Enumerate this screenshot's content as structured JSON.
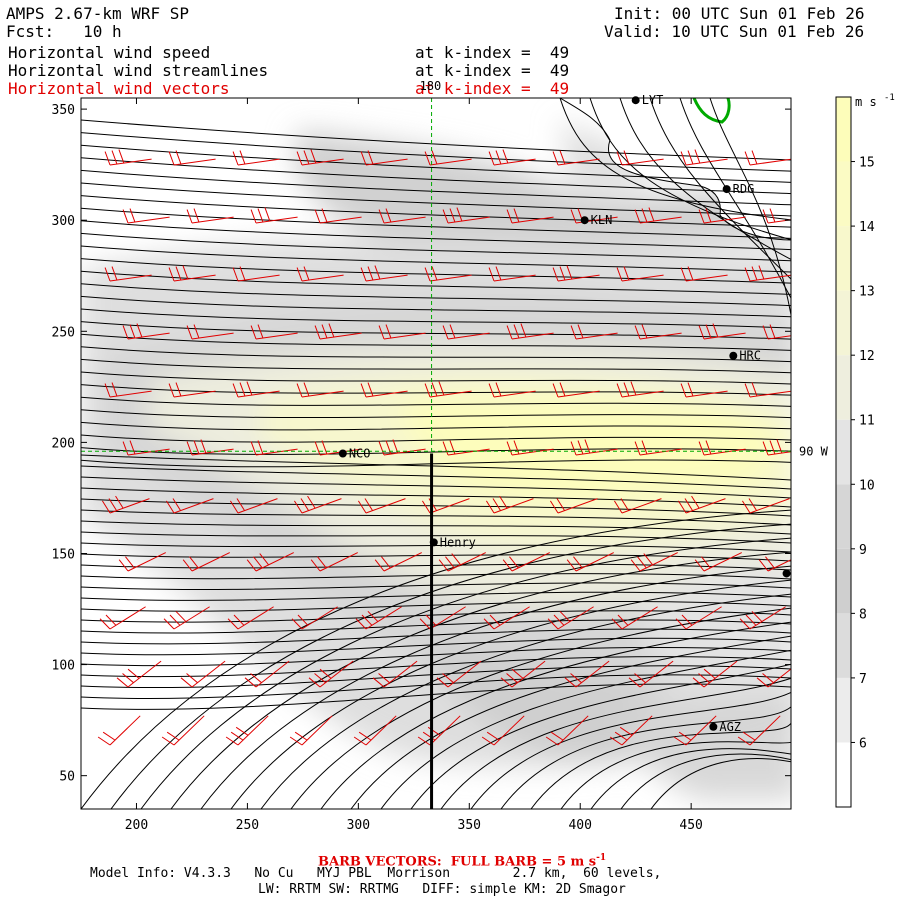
{
  "header": {
    "model": "AMPS 2.67-km WRF SP",
    "fcst": "Fcst:   10 h",
    "init": "Init: 00 UTC Sun 01 Feb 26",
    "valid": "Valid: 10 UTC Sun 01 Feb 26",
    "fields": [
      {
        "name": "Horizontal wind speed",
        "level": "at k-index =  49",
        "color": "#000000"
      },
      {
        "name": "Horizontal wind streamlines",
        "level": "at k-index =  49",
        "color": "#000000"
      },
      {
        "name": "Horizontal wind vectors",
        "level": "at k-index =  49",
        "color": "#e00000"
      }
    ]
  },
  "footer": {
    "barb_note": "BARB VECTORS:  FULL BARB = 5 m s",
    "barb_sup": "-1",
    "model_info": "Model Info: V4.3.3   No Cu   MYJ PBL  Morrison        2.7 km,  60 levels,",
    "physics": "LW: RRTM SW: RRTMG   DIFF: simple KM: 2D Smagor"
  },
  "chart_data": {
    "type": "heatmap",
    "title": "Horizontal wind speed / streamlines / vectors at k-index = 49",
    "xlim": [
      175,
      495
    ],
    "ylim": [
      35,
      355
    ],
    "x_ticks": [
      200,
      250,
      300,
      350,
      400,
      450
    ],
    "y_ticks": [
      50,
      100,
      150,
      200,
      250,
      300,
      350
    ],
    "colorbar": {
      "unit": "m s",
      "unit_sup": "-1",
      "ticks": [
        6,
        7,
        8,
        9,
        10,
        11,
        12,
        13,
        14,
        15
      ],
      "range": [
        5,
        16
      ],
      "colors": [
        "#ffffff",
        "#ececec",
        "#dcdcdc",
        "#cfcfcf",
        "#d6d6d6",
        "#e4e4e4",
        "#eeeede",
        "#f4f4d6",
        "#f8f8cc",
        "#fbfbc4",
        "#fdfdba"
      ]
    },
    "guide_lines": [
      {
        "label": "180",
        "orientation": "vertical",
        "value": 333
      },
      {
        "label": "90 W",
        "orientation": "horizontal",
        "value": 196
      }
    ],
    "cross_section": {
      "x": 333,
      "y_from": 35,
      "y_to": 195
    },
    "stations": [
      {
        "name": "LYT",
        "x": 425,
        "y": 354
      },
      {
        "name": "RDG",
        "x": 466,
        "y": 314
      },
      {
        "name": "KLN",
        "x": 402,
        "y": 300
      },
      {
        "name": "HRC",
        "x": 469,
        "y": 239
      },
      {
        "name": "NCO",
        "x": 293,
        "y": 195
      },
      {
        "name": "Henry",
        "x": 334,
        "y": 155
      },
      {
        "name": "",
        "x": 493,
        "y": 141
      },
      {
        "name": "AGZ",
        "x": 460,
        "y": 72
      }
    ]
  }
}
